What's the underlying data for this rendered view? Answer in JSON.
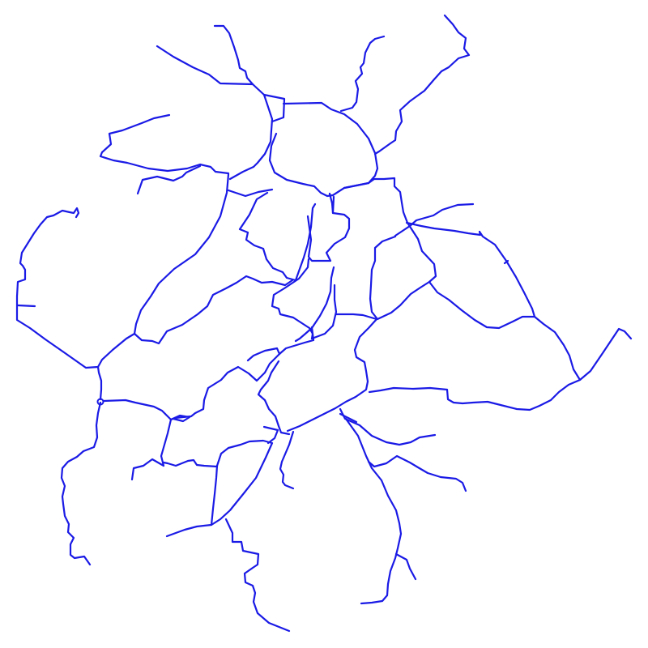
{
  "map": {
    "style": "road network outline",
    "background_color": "#ffffff",
    "line_color": "#1a1ae6",
    "labels": []
  }
}
